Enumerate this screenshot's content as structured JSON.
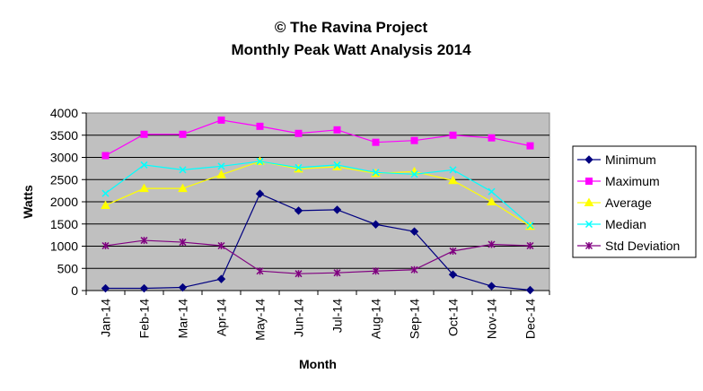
{
  "chart_data": {
    "type": "line",
    "title": "© The Ravina Project",
    "subtitle": "Monthly Peak Watt Analysis 2014",
    "xlabel": "Month",
    "ylabel": "Watts",
    "ylim": [
      0,
      4000
    ],
    "yticks": [
      0,
      500,
      1000,
      1500,
      2000,
      2500,
      3000,
      3500,
      4000
    ],
    "grid": true,
    "legend": "right",
    "categories": [
      "Jan-14",
      "Feb-14",
      "Mar-14",
      "Apr-14",
      "May-14",
      "Jun-14",
      "Jul-14",
      "Aug-14",
      "Sep-14",
      "Oct-14",
      "Nov-14",
      "Dec-14"
    ],
    "series": [
      {
        "name": "Minimum",
        "color": "#000080",
        "marker": "diamond",
        "values": [
          50,
          50,
          70,
          260,
          2180,
          1800,
          1820,
          1490,
          1330,
          360,
          100,
          10
        ]
      },
      {
        "name": "Maximum",
        "color": "#FF00FF",
        "marker": "square",
        "values": [
          3040,
          3520,
          3520,
          3840,
          3700,
          3540,
          3620,
          3340,
          3380,
          3500,
          3440,
          3260
        ]
      },
      {
        "name": "Average",
        "color": "#FFFF00",
        "marker": "triangle",
        "values": [
          1920,
          2300,
          2300,
          2610,
          2910,
          2740,
          2790,
          2640,
          2680,
          2480,
          2000,
          1450
        ]
      },
      {
        "name": "Median",
        "color": "#00FFFF",
        "marker": "x",
        "values": [
          2190,
          2830,
          2720,
          2800,
          2910,
          2770,
          2830,
          2660,
          2620,
          2720,
          2230,
          1470
        ]
      },
      {
        "name": "Std Deviation",
        "color": "#800080",
        "marker": "star",
        "values": [
          1010,
          1130,
          1090,
          1010,
          440,
          380,
          400,
          440,
          470,
          890,
          1040,
          1010
        ]
      }
    ]
  }
}
